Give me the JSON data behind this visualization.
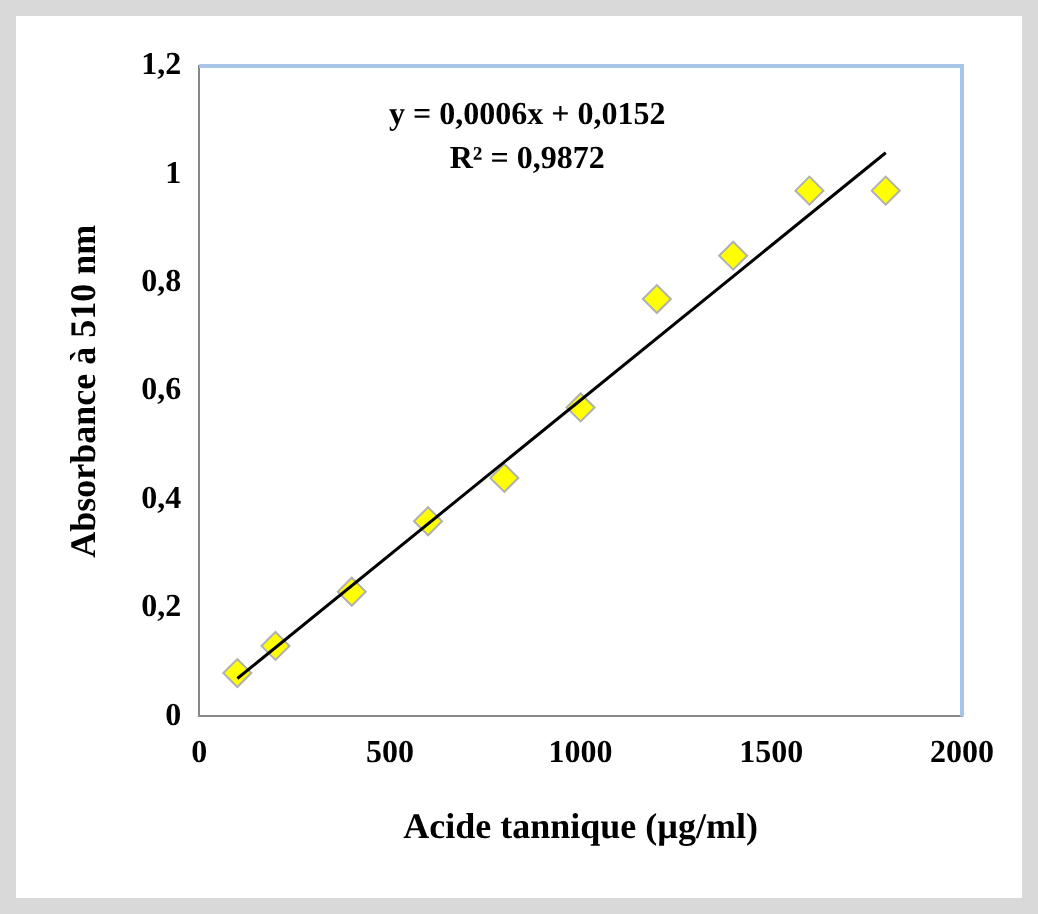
{
  "chart_data": {
    "type": "scatter",
    "xlabel": "Acide tannique (µg/ml)",
    "ylabel": "Absorbance à 510 nm",
    "series": [
      {
        "color": "#ffff00",
        "marker": "diamond",
        "x": [
          100,
          200,
          400,
          600,
          800,
          1000,
          1200,
          1400,
          1600,
          1800
        ],
        "values": [
          0.08,
          0.13,
          0.23,
          0.36,
          0.44,
          0.57,
          0.77,
          0.85,
          0.97,
          0.97
        ]
      },
      {
        "type": "line",
        "color": "#000000",
        "marker": "none",
        "line_style": "solid",
        "x": [
          100,
          1800
        ],
        "values": [
          0.07,
          1.04
        ]
      }
    ],
    "xlim": [
      0,
      2000
    ],
    "xticks": [
      0,
      500,
      1000,
      1500,
      2000
    ],
    "ylim": [
      0,
      1.2
    ],
    "yticks": [
      0,
      {
        "value": 0.2,
        "label": "0,2"
      },
      {
        "value": 0.4,
        "label": "0,4"
      },
      {
        "value": 0.6,
        "label": "0,6"
      },
      {
        "value": 0.8,
        "label": "0,8"
      },
      1,
      {
        "value": 1.2,
        "label": "1,2"
      }
    ],
    "annotations": [
      "y = 0,0006x + 0,0152",
      "R² = 0,9872"
    ],
    "grid": false,
    "legend": false
  }
}
